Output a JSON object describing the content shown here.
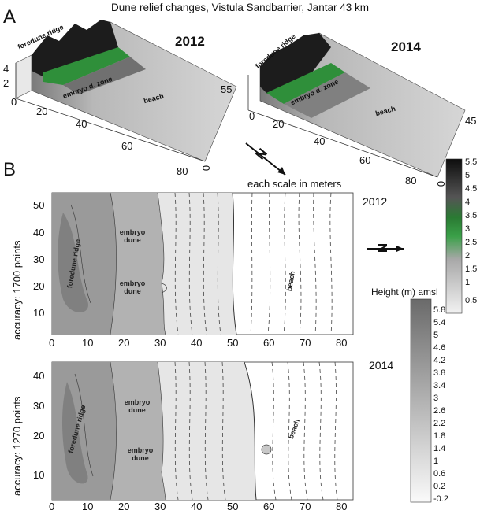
{
  "title": "Dune relief changes, Vistula Sandbarrier, Jantar 43 km",
  "panel_a": {
    "letter": "A",
    "models": [
      {
        "year": "2012",
        "labels": {
          "foredune": "foredune ridge",
          "embryo": "embryo d. zone",
          "beach": "beach"
        },
        "axis_ticks_left": [
          "4",
          "2"
        ],
        "axis_ticks_bottom": [
          "0",
          "20",
          "40",
          "60",
          "80"
        ],
        "axis_tick_right": "55",
        "axis_tick_corner": "0"
      },
      {
        "year": "2014",
        "labels": {
          "foredune": "foredune ridge",
          "embryo": "embryo d. zone",
          "beach": "beach"
        },
        "axis_ticks_bottom": [
          "0",
          "20",
          "40",
          "60",
          "80"
        ],
        "axis_tick_right": "45",
        "axis_tick_corner": "0"
      }
    ],
    "north_symbol": "N",
    "scale_note": "each scale in meters",
    "colorbar": {
      "ticks": [
        "5.5",
        "5",
        "4.5",
        "4",
        "3.5",
        "3",
        "2.5",
        "2",
        "1.5",
        "1",
        "0.5"
      ],
      "colors": {
        "low": "#f2f2f2",
        "mid": "#2e9a3a",
        "high": "#111111"
      }
    }
  },
  "panel_b": {
    "letter": "B",
    "maps": [
      {
        "year": "2012",
        "ylabel": "accuracy: 1700 points",
        "y_ticks": [
          "50",
          "40",
          "30",
          "20",
          "10"
        ],
        "x_ticks": [
          "0",
          "10",
          "20",
          "30",
          "40",
          "50",
          "60",
          "70",
          "80"
        ],
        "labels": {
          "foredune": "foredune ridge",
          "embryo1": "embryo dune",
          "embryo2": "embryo dune",
          "beach": "beach"
        }
      },
      {
        "year": "2014",
        "ylabel": "accuracy: 1270 points",
        "y_ticks": [
          "40",
          "30",
          "20",
          "10"
        ],
        "x_ticks": [
          "0",
          "10",
          "20",
          "30",
          "40",
          "50",
          "60",
          "70",
          "80"
        ],
        "labels": {
          "foredune": "foredune ridge",
          "embryo1": "embryo dune",
          "embryo2": "embryo dune",
          "beach": "beach"
        }
      }
    ],
    "north_symbol": "N",
    "legend": {
      "title": "Height (m) amsl",
      "ticks": [
        "5.8",
        "5.4",
        "5",
        "4.6",
        "4.2",
        "3.8",
        "3.4",
        "3",
        "2.6",
        "2.2",
        "1.8",
        "1.4",
        "1",
        "0.6",
        "0.2",
        "-0.2"
      ]
    }
  }
}
